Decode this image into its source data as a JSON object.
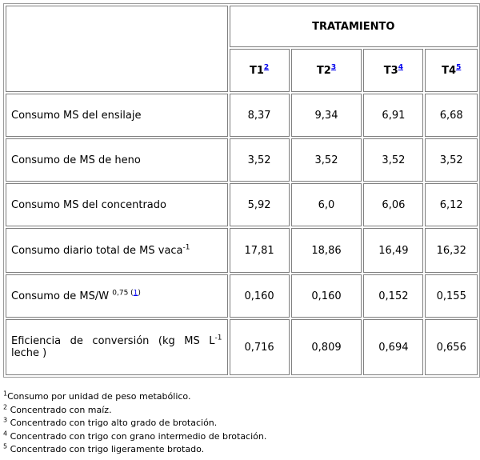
{
  "table": {
    "group_header": "TRATAMIENTO",
    "columns": [
      {
        "label": "T1",
        "ref": "2"
      },
      {
        "label": "T2",
        "ref": "3"
      },
      {
        "label": "T3",
        "ref": "4"
      },
      {
        "label": "T4",
        "ref": "5"
      }
    ],
    "rows": [
      {
        "label": "Consumo MS del ensilaje",
        "values": [
          "8,37",
          "9,34",
          "6,91",
          "6,68"
        ]
      },
      {
        "label": "Consumo de MS de heno",
        "values": [
          "3,52",
          "3,52",
          "3,52",
          "3,52"
        ]
      },
      {
        "label": "Consumo MS del concentrado",
        "values": [
          "5,92",
          "6,0",
          "6,06",
          "6,12"
        ]
      },
      {
        "label": "Consumo diario total de MS vaca",
        "label_sup": "-1",
        "values": [
          "17,81",
          "18,86",
          "16,49",
          "16,32"
        ]
      },
      {
        "label": "Consumo de MS/W ",
        "label_sup": "0,75",
        "label_ref_open": " (",
        "label_ref": "1",
        "label_ref_close": ")",
        "values": [
          "0,160",
          "0,160",
          "0,152",
          "0,155"
        ]
      },
      {
        "label": "Eficiencia de conversión (kg MS L",
        "label_sup": "-1",
        "label_tail": " leche )",
        "values": [
          "0,716",
          "0,809",
          "0,694",
          "0,656"
        ]
      }
    ]
  },
  "footnotes": [
    {
      "sup": "1",
      "text": "Consumo por unidad de peso metabólico."
    },
    {
      "sup": "2",
      "text": " Concentrado con maíz."
    },
    {
      "sup": "3",
      "text": " Concentrado con trigo alto grado de brotación."
    },
    {
      "sup": "4",
      "text": " Concentrado con trigo con grano intermedio de brotación."
    },
    {
      "sup": "5",
      "text": " Concentrado con trigo ligeramente brotado."
    }
  ]
}
